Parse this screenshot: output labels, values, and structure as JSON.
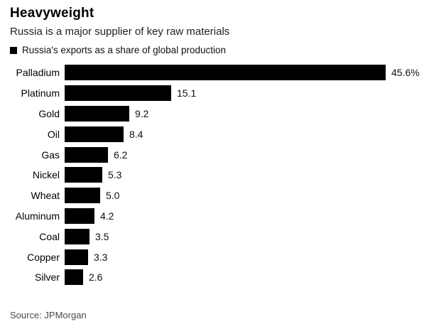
{
  "header": {
    "title": "Heavyweight",
    "subtitle": "Russia is a major supplier of key raw materials"
  },
  "legend": {
    "label": "Russia's exports as a share of global production",
    "swatch_color": "#000000"
  },
  "source": "Source: JPMorgan",
  "chart_data": {
    "type": "bar",
    "orientation": "horizontal",
    "title": "Heavyweight",
    "subtitle": "Russia is a major supplier of key raw materials",
    "legend_label": "Russia's exports as a share of global production",
    "categories": [
      "Palladium",
      "Platinum",
      "Gold",
      "Oil",
      "Gas",
      "Nickel",
      "Wheat",
      "Aluminum",
      "Coal",
      "Copper",
      "Silver"
    ],
    "values": [
      45.6,
      15.1,
      9.2,
      8.4,
      6.2,
      5.3,
      5.0,
      4.2,
      3.5,
      3.3,
      2.6
    ],
    "value_labels": [
      "45.6%",
      "15.1",
      "9.2",
      "8.4",
      "6.2",
      "5.3",
      "5.0",
      "4.2",
      "3.5",
      "3.3",
      "2.6"
    ],
    "xlim": [
      0,
      45.6
    ],
    "bar_color": "#000000",
    "background_color": "#ffffff",
    "grid": false,
    "legend_position": "top-left",
    "source": "Source: JPMorgan"
  }
}
